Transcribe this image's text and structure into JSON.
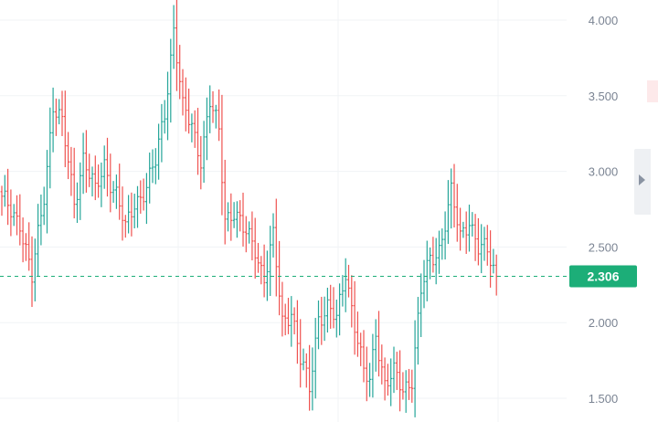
{
  "chart_data": {
    "type": "bar",
    "subtype": "ohlc",
    "title": "",
    "xlabel": "",
    "ylabel": "",
    "ylim": [
      1.4,
      4.1
    ],
    "y_ticks": [
      "4.000",
      "3.500",
      "3.000",
      "2.500",
      "2.000",
      "1.500"
    ],
    "y_tick_values": [
      4.0,
      3.5,
      3.0,
      2.5,
      2.0,
      1.5
    ],
    "grid": true,
    "last_price": 2.306,
    "last_price_label": "2.306",
    "colors": {
      "up": "#26a69a",
      "down": "#ef5350",
      "tag": "#1cae78",
      "grid": "#f0f3f6",
      "text": "#7b8493"
    },
    "anchors": [
      [
        0,
        2.8
      ],
      [
        6,
        2.68
      ],
      [
        10,
        2.28
      ],
      [
        14,
        2.85
      ],
      [
        17,
        3.45
      ],
      [
        20,
        3.3
      ],
      [
        24,
        2.8
      ],
      [
        27,
        3.1
      ],
      [
        31,
        2.85
      ],
      [
        34,
        3.05
      ],
      [
        38,
        2.85
      ],
      [
        41,
        2.6
      ],
      [
        44,
        2.8
      ],
      [
        48,
        2.9
      ],
      [
        51,
        3.05
      ],
      [
        54,
        3.4
      ],
      [
        57,
        3.95
      ],
      [
        60,
        3.4
      ],
      [
        63,
        3.3
      ],
      [
        66,
        3.1
      ],
      [
        69,
        3.45
      ],
      [
        72,
        3.25
      ],
      [
        74,
        2.7
      ],
      [
        77,
        2.75
      ],
      [
        80,
        2.6
      ],
      [
        84,
        2.5
      ],
      [
        87,
        2.3
      ],
      [
        90,
        2.55
      ],
      [
        93,
        2.0
      ],
      [
        96,
        2.1
      ],
      [
        99,
        1.75
      ],
      [
        102,
        1.55
      ],
      [
        105,
        2.05
      ],
      [
        108,
        2.1
      ],
      [
        111,
        2.0
      ],
      [
        114,
        2.35
      ],
      [
        117,
        2.0
      ],
      [
        120,
        1.65
      ],
      [
        122,
        1.6
      ],
      [
        124,
        1.95
      ],
      [
        127,
        1.6
      ],
      [
        130,
        1.65
      ],
      [
        133,
        1.55
      ],
      [
        136,
        1.65
      ],
      [
        139,
        2.2
      ],
      [
        142,
        2.4
      ],
      [
        145,
        2.5
      ],
      [
        149,
        2.85
      ],
      [
        152,
        2.55
      ],
      [
        155,
        2.7
      ],
      [
        158,
        2.5
      ],
      [
        161,
        2.45
      ],
      [
        164,
        2.306
      ]
    ]
  }
}
